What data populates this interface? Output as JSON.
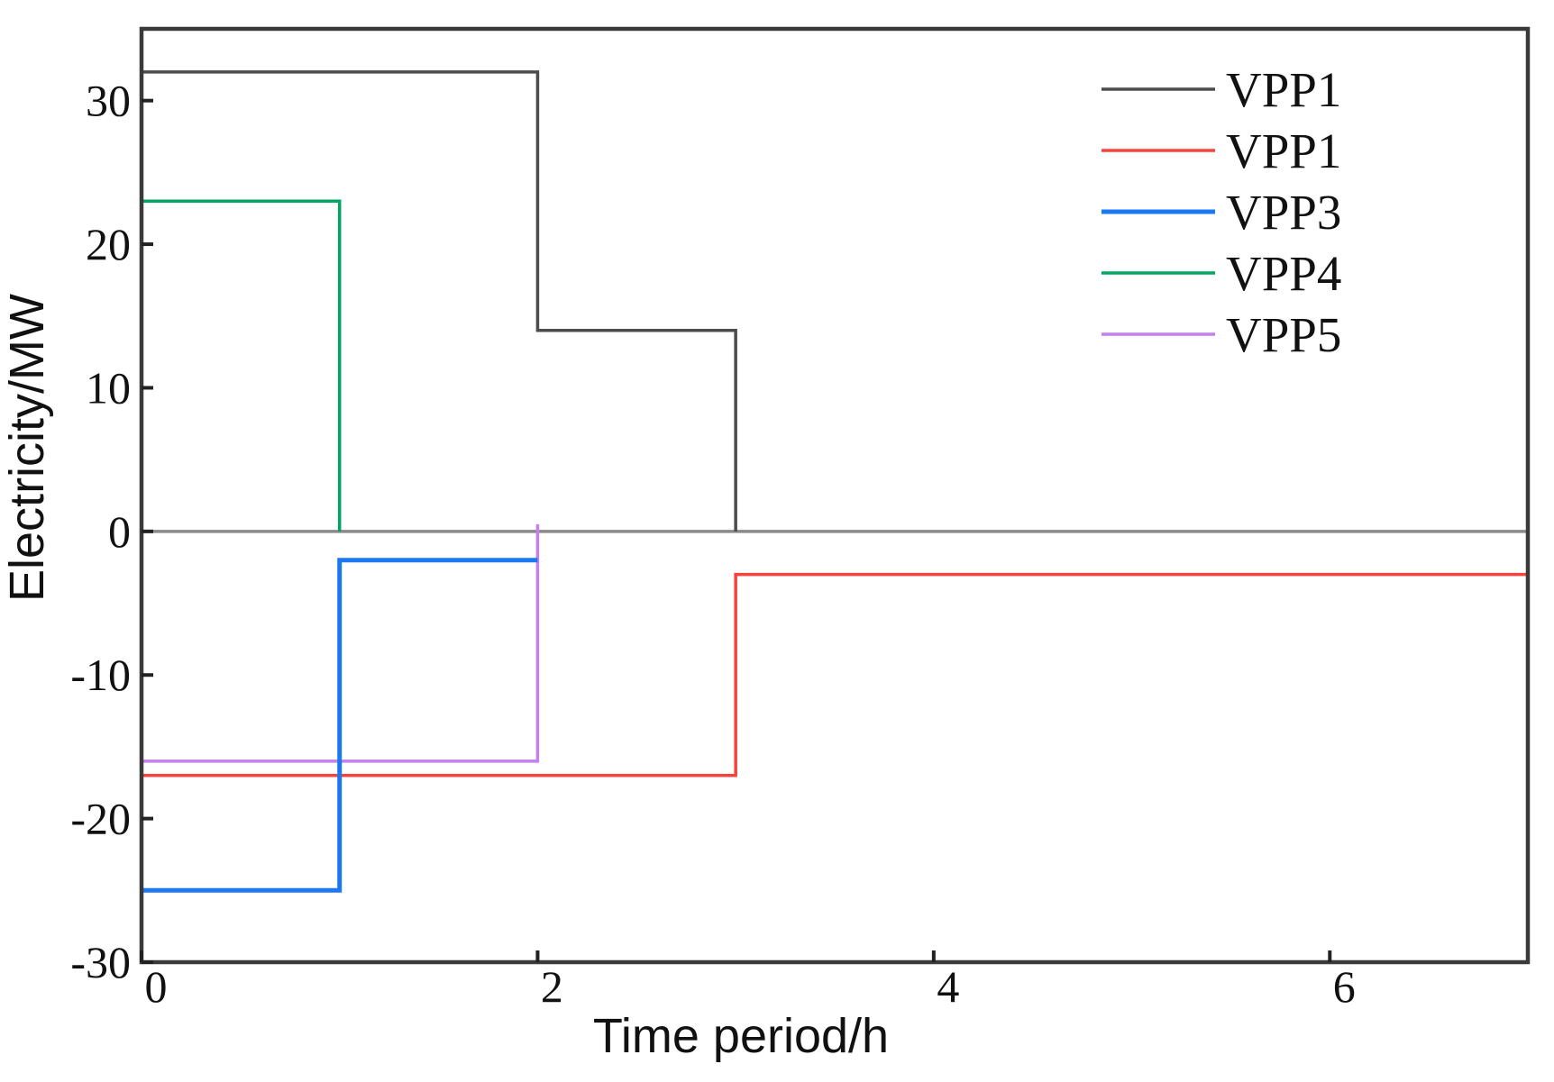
{
  "figure": {
    "background": "#ffffff",
    "frame_color": "#3a3a3a",
    "zero_line_color": "#8a8a8a",
    "tick_mark_color": "#222222",
    "text_color": "#111111"
  },
  "chart_data": {
    "type": "line",
    "subtype": "step",
    "title": "",
    "xlabel": "Time period/h",
    "ylabel": "Electricity/MW",
    "xlim": [
      0,
      7
    ],
    "ylim": [
      -30,
      35
    ],
    "x_ticks": [
      "0",
      "2",
      "4",
      "6"
    ],
    "x_tick_values": [
      0,
      2,
      4,
      6
    ],
    "y_ticks": [
      "30",
      "20",
      "10",
      "0",
      "-10",
      "-20",
      "-30"
    ],
    "y_tick_values": [
      30,
      20,
      10,
      0,
      -10,
      -20,
      -30
    ],
    "grid": false,
    "zero_line": true,
    "legend_position": "top-right-inside",
    "series": [
      {
        "name": "VPP1",
        "color": "#4c4c4c",
        "width": 3.5,
        "z": 1,
        "points": [
          [
            0,
            32
          ],
          [
            2,
            32
          ],
          [
            2,
            14
          ],
          [
            3,
            14
          ],
          [
            3,
            0
          ]
        ]
      },
      {
        "name": "VPP1",
        "color": "#f8433c",
        "width": 3.5,
        "z": 2,
        "points": [
          [
            0,
            -17
          ],
          [
            3,
            -17
          ],
          [
            3,
            -3
          ],
          [
            7,
            -3
          ]
        ]
      },
      {
        "name": "VPP3",
        "color": "#1b78f1",
        "width": 5,
        "z": 5,
        "points": [
          [
            0,
            -25
          ],
          [
            1,
            -25
          ],
          [
            1,
            -2
          ],
          [
            2,
            -2
          ]
        ]
      },
      {
        "name": "VPP4",
        "color": "#00a562",
        "width": 3.5,
        "z": 3,
        "points": [
          [
            0,
            23
          ],
          [
            1,
            23
          ],
          [
            1,
            0
          ]
        ]
      },
      {
        "name": "VPP5",
        "color": "#c47ff0",
        "width": 3.5,
        "z": 4,
        "points": [
          [
            0,
            -16
          ],
          [
            2,
            -16
          ],
          [
            2,
            0.5
          ]
        ]
      }
    ]
  }
}
